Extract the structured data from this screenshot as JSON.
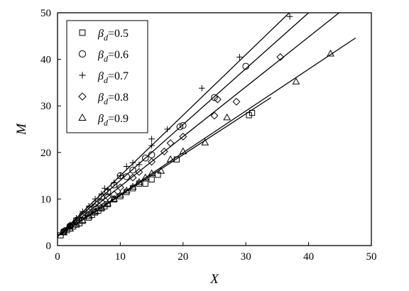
{
  "chart_data": {
    "type": "scatter",
    "title": "",
    "xlabel": "X",
    "ylabel": "M",
    "xlim": [
      0,
      50
    ],
    "ylim": [
      0,
      50
    ],
    "x_ticks": [
      "0",
      "10",
      "20",
      "30",
      "40",
      "50"
    ],
    "y_ticks": [
      "0",
      "10",
      "20",
      "30",
      "40",
      "50"
    ],
    "grid": false,
    "legend_position": "top-left",
    "series": [
      {
        "name_prefix": "β",
        "name_sub": "d",
        "name_value": "=0.5",
        "marker": "square",
        "fit": {
          "intercept": 2.0,
          "slope": 0.876,
          "x_range": [
            0,
            34
          ]
        },
        "points": [
          [
            0.5,
            2.2
          ],
          [
            1.0,
            2.9
          ],
          [
            1.5,
            3.3
          ],
          [
            2.0,
            3.7
          ],
          [
            2.5,
            4.1
          ],
          [
            3.0,
            4.5
          ],
          [
            3.5,
            4.8
          ],
          [
            4.0,
            5.3
          ],
          [
            5.0,
            6.0
          ],
          [
            5.5,
            6.6
          ],
          [
            6.0,
            7.1
          ],
          [
            6.5,
            7.5
          ],
          [
            7.0,
            8.0
          ],
          [
            7.5,
            8.4
          ],
          [
            8.0,
            8.9
          ],
          [
            9.0,
            9.9
          ],
          [
            10.0,
            10.6
          ],
          [
            11.0,
            11.5
          ],
          [
            12.0,
            12.3
          ],
          [
            13.0,
            13.3
          ],
          [
            14.0,
            13.3
          ],
          [
            15.0,
            14.2
          ],
          [
            16.0,
            15.2
          ],
          [
            19.0,
            18.5
          ],
          [
            30.5,
            28.0
          ],
          [
            31.0,
            28.5
          ]
        ]
      },
      {
        "name_prefix": "β",
        "name_sub": "d",
        "name_value": "=0.6",
        "marker": "circle",
        "fit": {
          "intercept": 2.0,
          "slope": 1.2,
          "x_range": [
            0,
            40
          ]
        },
        "points": [
          [
            1.0,
            3.0
          ],
          [
            2.0,
            4.2
          ],
          [
            3.0,
            5.4
          ],
          [
            4.0,
            6.6
          ],
          [
            5.0,
            7.8
          ],
          [
            6.0,
            9.0
          ],
          [
            7.0,
            10.4
          ],
          [
            8.0,
            11.6
          ],
          [
            9.0,
            13.0
          ],
          [
            10.0,
            15.0
          ],
          [
            11.0,
            14.8
          ],
          [
            12.0,
            16.2
          ],
          [
            14.0,
            18.8
          ],
          [
            15.0,
            19.5
          ],
          [
            19.5,
            25.5
          ],
          [
            20.0,
            25.8
          ],
          [
            25.0,
            31.8
          ],
          [
            30.0,
            38.5
          ]
        ]
      },
      {
        "name_prefix": "β",
        "name_sub": "d",
        "name_value": "=0.7",
        "marker": "plus",
        "fit": {
          "intercept": 2.0,
          "slope": 1.3,
          "x_range": [
            0,
            38
          ]
        },
        "points": [
          [
            1.0,
            3.2
          ],
          [
            2.0,
            4.5
          ],
          [
            3.0,
            5.9
          ],
          [
            4.0,
            7.3
          ],
          [
            5.0,
            8.5
          ],
          [
            6.0,
            10.0
          ],
          [
            7.0,
            11.1
          ],
          [
            7.5,
            12.3
          ],
          [
            8.0,
            12.0
          ],
          [
            9.0,
            13.5
          ],
          [
            10.0,
            15.0
          ],
          [
            11.0,
            17.0
          ],
          [
            12.0,
            17.8
          ],
          [
            13.0,
            17.4
          ],
          [
            15.0,
            21.5
          ],
          [
            15.0,
            22.9
          ],
          [
            17.5,
            25.0
          ],
          [
            23.0,
            33.8
          ],
          [
            29.0,
            40.5
          ],
          [
            37.0,
            49.2
          ]
        ]
      },
      {
        "name_prefix": "β",
        "name_sub": "d",
        "name_value": "=0.8",
        "marker": "diamond",
        "fit": {
          "intercept": 2.0,
          "slope": 1.07,
          "x_range": [
            0,
            45
          ]
        },
        "points": [
          [
            1.0,
            3.0
          ],
          [
            2.0,
            4.2
          ],
          [
            3.0,
            5.1
          ],
          [
            4.0,
            6.2
          ],
          [
            5.0,
            7.2
          ],
          [
            6.0,
            8.3
          ],
          [
            7.0,
            9.4
          ],
          [
            8.0,
            10.5
          ],
          [
            9.0,
            11.0
          ],
          [
            10.0,
            12.5
          ],
          [
            12.0,
            14.6
          ],
          [
            13.0,
            15.8
          ],
          [
            15.0,
            18.0
          ],
          [
            17.0,
            20.2
          ],
          [
            18.0,
            22.0
          ],
          [
            20.0,
            23.4
          ],
          [
            25.0,
            27.9
          ],
          [
            25.5,
            31.4
          ],
          [
            28.5,
            30.9
          ],
          [
            35.5,
            40.5
          ]
        ]
      },
      {
        "name_prefix": "β",
        "name_sub": "d",
        "name_value": "=0.9",
        "marker": "triangle",
        "fit": {
          "intercept": 2.0,
          "slope": 0.897,
          "x_range": [
            0,
            47.5
          ]
        },
        "points": [
          [
            1.0,
            2.8
          ],
          [
            2.0,
            3.6
          ],
          [
            3.0,
            4.5
          ],
          [
            4.0,
            5.4
          ],
          [
            5.0,
            6.3
          ],
          [
            6.0,
            7.3
          ],
          [
            7.0,
            8.1
          ],
          [
            8.0,
            9.0
          ],
          [
            9.0,
            10.0
          ],
          [
            10.0,
            10.9
          ],
          [
            11.0,
            11.8
          ],
          [
            12.0,
            12.6
          ],
          [
            13.0,
            13.6
          ],
          [
            14.0,
            14.6
          ],
          [
            15.0,
            15.5
          ],
          [
            16.5,
            16.0
          ],
          [
            18.0,
            18.5
          ],
          [
            20.0,
            20.2
          ],
          [
            23.5,
            22.1
          ],
          [
            27.0,
            27.5
          ],
          [
            38.0,
            35.2
          ],
          [
            43.5,
            41.2
          ]
        ]
      }
    ]
  }
}
